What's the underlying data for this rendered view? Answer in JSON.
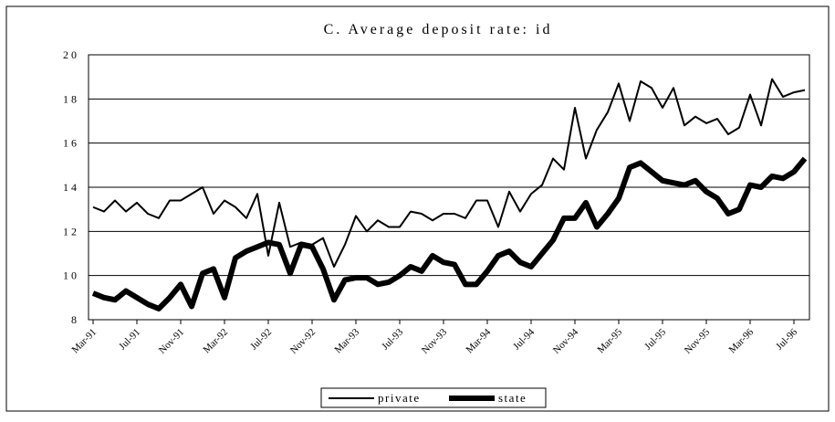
{
  "chart_data": {
    "type": "line",
    "title": "C.  Average deposit rate: id",
    "categories": [
      "Mar-91",
      null,
      null,
      null,
      "Jul-91",
      null,
      null,
      null,
      "Nov-91",
      null,
      null,
      null,
      "Mar-92",
      null,
      null,
      null,
      "Jul-92",
      null,
      null,
      null,
      "Nov-92",
      null,
      null,
      null,
      "Mar-93",
      null,
      null,
      null,
      "Jul-93",
      null,
      null,
      null,
      "Nov-93",
      null,
      null,
      null,
      "Mar-94",
      null,
      null,
      null,
      "Jul-94",
      null,
      null,
      null,
      "Nov-94",
      null,
      null,
      null,
      "Mar-95",
      null,
      null,
      null,
      "Jul-95",
      null,
      null,
      null,
      "Nov-95",
      null,
      null,
      null,
      "Mar-96",
      null,
      null,
      null,
      "Jul-96",
      null
    ],
    "series": [
      {
        "name": "private",
        "color": "#000000",
        "width": 2,
        "values": [
          13.1,
          12.9,
          13.4,
          12.9,
          13.3,
          12.8,
          12.6,
          13.4,
          13.4,
          13.7,
          14.0,
          12.8,
          13.4,
          13.1,
          12.6,
          13.7,
          10.9,
          13.3,
          11.3,
          11.5,
          11.4,
          11.7,
          10.4,
          11.4,
          12.7,
          12.0,
          12.5,
          12.2,
          12.2,
          12.9,
          12.8,
          12.5,
          12.8,
          12.8,
          12.6,
          13.4,
          13.4,
          12.2,
          13.8,
          12.9,
          13.7,
          14.1,
          15.3,
          14.8,
          17.6,
          15.3,
          16.6,
          17.4,
          18.7,
          17.0,
          18.8,
          18.5,
          17.6,
          18.5,
          16.8,
          17.2,
          16.9,
          17.1,
          16.4,
          16.7,
          18.2,
          16.8,
          18.9,
          18.1,
          18.3,
          18.4
        ]
      },
      {
        "name": "state",
        "color": "#000000",
        "width": 6,
        "values": [
          9.2,
          9.0,
          8.9,
          9.3,
          9.0,
          8.7,
          8.5,
          9.0,
          9.6,
          8.6,
          10.1,
          10.3,
          9.0,
          10.8,
          11.1,
          11.3,
          11.5,
          11.4,
          10.1,
          11.4,
          11.3,
          10.3,
          8.9,
          9.8,
          9.9,
          9.9,
          9.6,
          9.7,
          10.0,
          10.4,
          10.2,
          10.9,
          10.6,
          10.5,
          9.6,
          9.6,
          10.2,
          10.9,
          11.1,
          10.6,
          10.4,
          11.0,
          11.6,
          12.6,
          12.6,
          13.3,
          12.2,
          12.8,
          13.5,
          14.9,
          15.1,
          14.7,
          14.3,
          14.2,
          14.1,
          14.3,
          13.8,
          13.5,
          12.8,
          13.0,
          14.1,
          14.0,
          14.5,
          14.4,
          14.7,
          15.3
        ]
      }
    ],
    "ylim": [
      8,
      20
    ],
    "yticks": [
      8,
      10,
      12,
      14,
      16,
      18,
      20
    ],
    "grid": true,
    "legend": "bottom"
  }
}
